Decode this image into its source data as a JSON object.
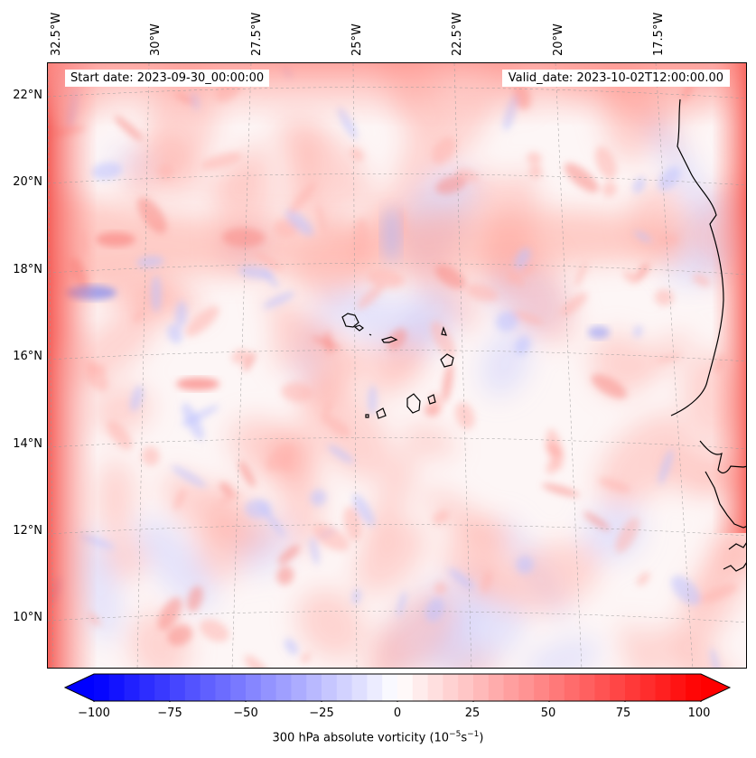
{
  "title_row": {
    "start_date": "Start date: 2023-09-30_00:00:00",
    "valid_date": "Valid_date: 2023-10-02T12:00:00.00"
  },
  "map": {
    "projection": "lambert-conformal",
    "gridlines": true,
    "coastline_color": "#000000",
    "lon_labels": [
      "32.5°W",
      "30°W",
      "27.5°W",
      "25°W",
      "22.5°W",
      "20°W",
      "17.5°W"
    ],
    "lat_labels": [
      "22°N",
      "20°N",
      "18°N",
      "16°N",
      "14°N",
      "12°N",
      "10°N"
    ],
    "features": [
      "cabo-verde-islands",
      "west-africa-coastline"
    ]
  },
  "colorbar": {
    "label_prefix": "300 hPa absolute vorticity (10",
    "label_exp1": "−5",
    "label_mid": "s",
    "label_exp2": "−1",
    "label_suffix": ")",
    "ticks": [
      "−100",
      "−75",
      "−50",
      "−25",
      "0",
      "25",
      "50",
      "75",
      "100"
    ],
    "vmin": -100,
    "vmax": 100,
    "colormap": "bwr",
    "extend": "both",
    "low_color": "#0000ff",
    "mid_color": "#ffffff",
    "high_color": "#ff0000"
  }
}
